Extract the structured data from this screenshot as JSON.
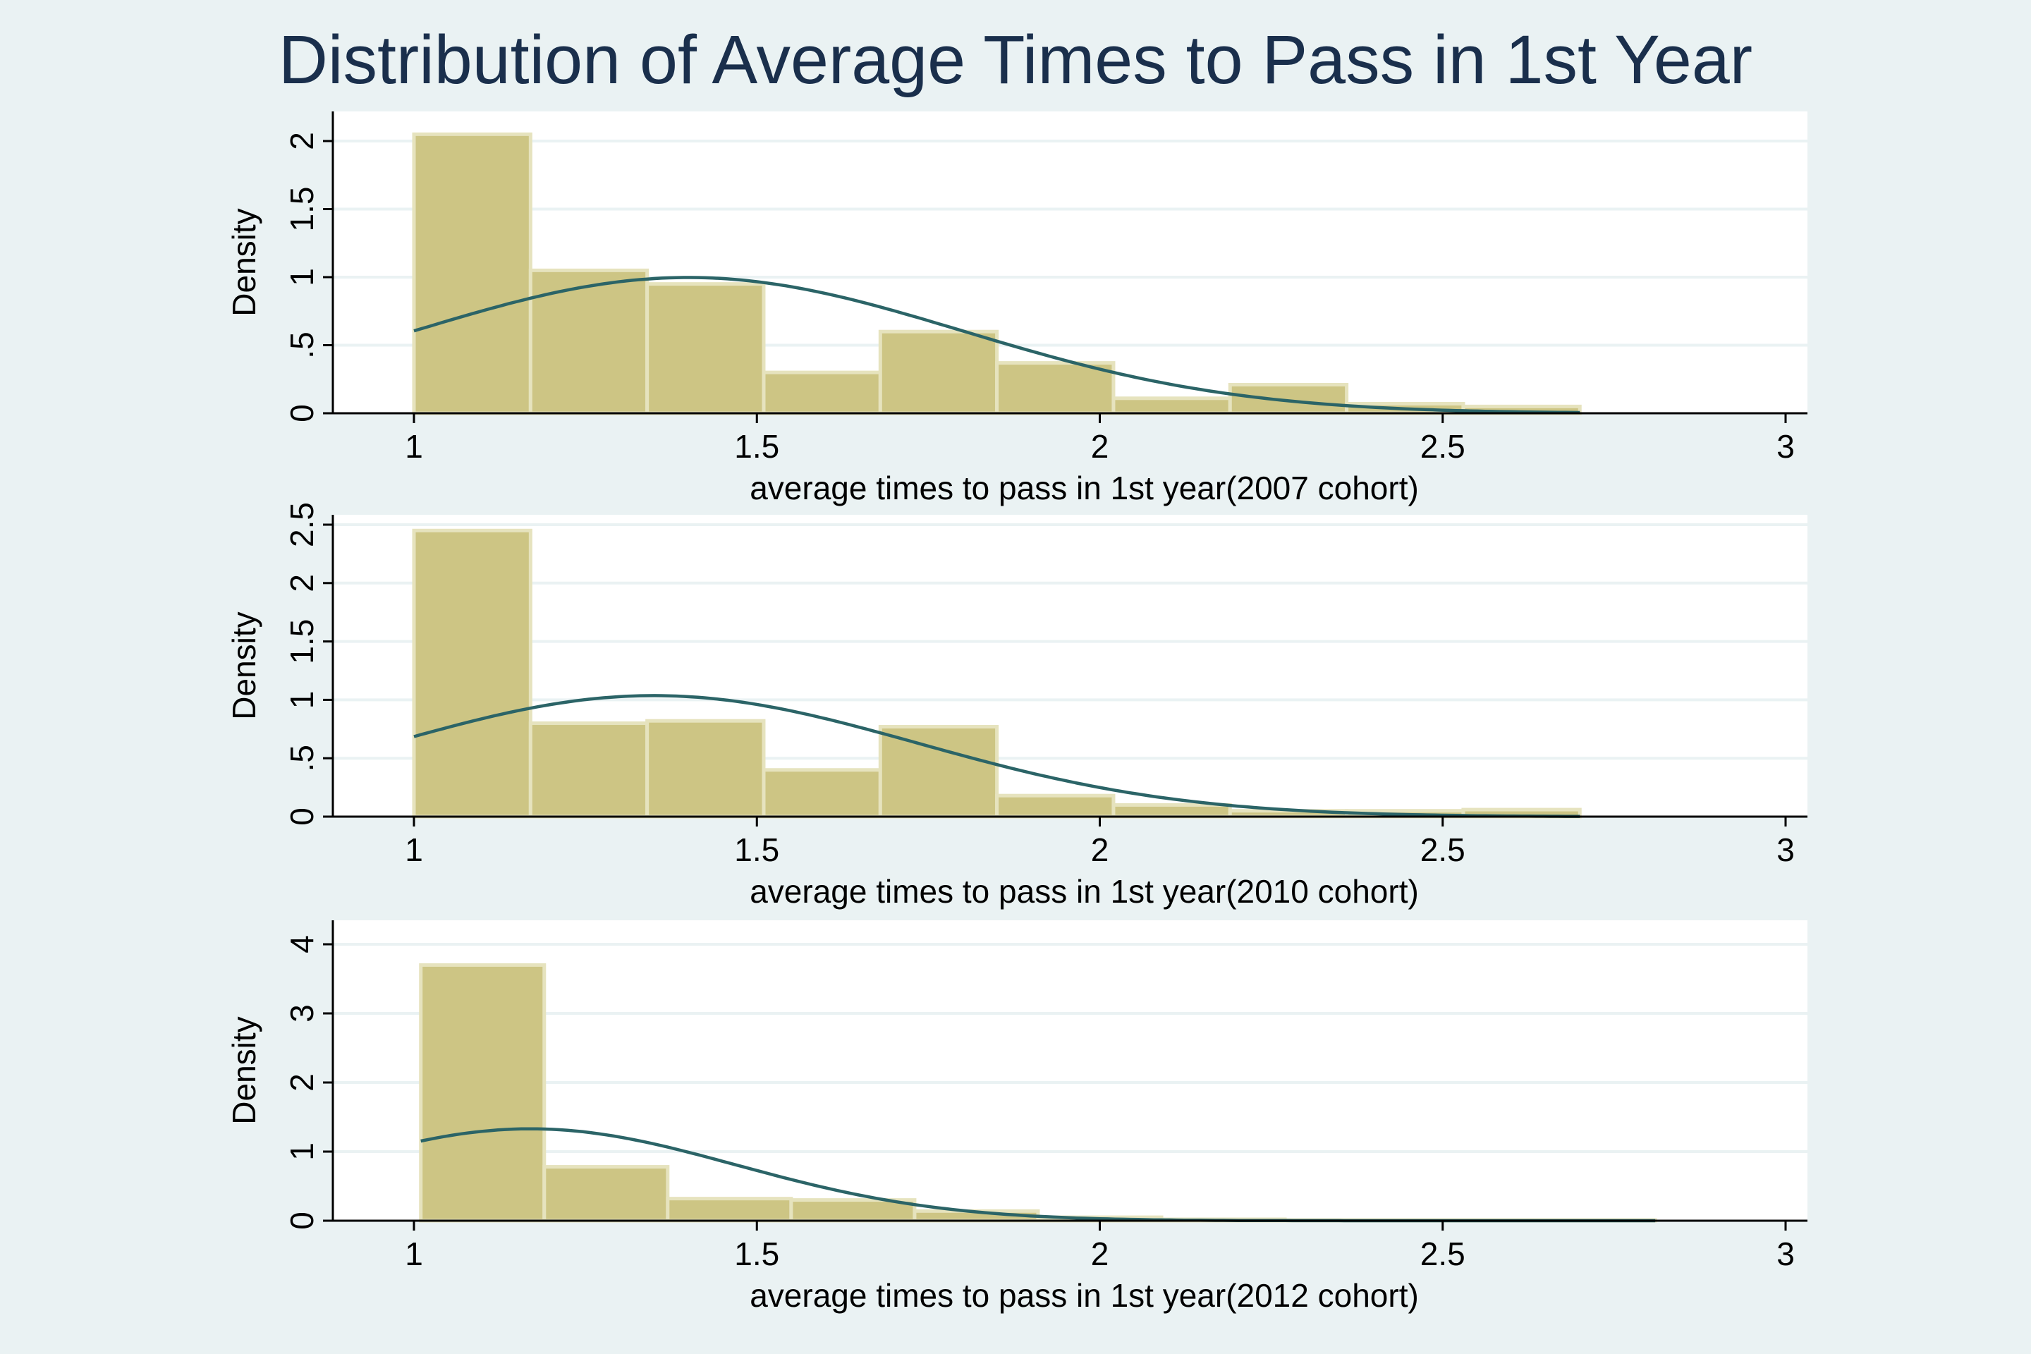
{
  "figure": {
    "title": "Distribution of Average Times to Pass in 1st Year",
    "background": "#eaf2f3",
    "plot_background": "#ffffff",
    "bar_color": "#cdc584",
    "bar_outline": "#e6e3be",
    "curve_color": "#2b6467",
    "title_color": "#1a2f4c"
  },
  "chart_data": [
    {
      "type": "bar",
      "subtype": "histogram with normal density overlay",
      "xlabel": "average times to pass in 1st year(2007 cohort)",
      "ylabel": "Density",
      "xlim": [
        1,
        3
      ],
      "xticks": [
        1,
        1.5,
        2,
        2.5,
        3
      ],
      "xtick_labels": [
        "1",
        "1.5",
        "2",
        "2.5",
        "3"
      ],
      "ylim": [
        0,
        2.0
      ],
      "yticks": [
        0,
        0.5,
        1,
        1.5,
        2
      ],
      "ytick_labels": [
        "0",
        ".5",
        "1",
        "1.5",
        "2"
      ],
      "grid": true,
      "bin_edges": [
        1.0,
        1.17,
        1.34,
        1.51,
        1.68,
        1.85,
        2.02,
        2.19,
        2.36,
        2.53,
        2.7
      ],
      "values": [
        2.05,
        1.05,
        0.95,
        0.3,
        0.6,
        0.37,
        0.11,
        0.21,
        0.07,
        0.05
      ],
      "density_curve": {
        "distribution": "normal",
        "mean": 1.4,
        "sd": 0.4,
        "x_range": [
          1,
          2.7
        ]
      }
    },
    {
      "type": "bar",
      "subtype": "histogram with normal density overlay",
      "xlabel": "average times to pass in 1st year(2010 cohort)",
      "ylabel": "Density",
      "xlim": [
        1,
        3
      ],
      "xticks": [
        1,
        1.5,
        2,
        2.5,
        3
      ],
      "xtick_labels": [
        "1",
        "1.5",
        "2",
        "2.5",
        "3"
      ],
      "ylim": [
        0,
        2.5
      ],
      "yticks": [
        0,
        0.5,
        1,
        1.5,
        2,
        2.5
      ],
      "ytick_labels": [
        "0",
        ".5",
        "1",
        "1.5",
        "2",
        "2.5"
      ],
      "grid": true,
      "bin_edges": [
        1.0,
        1.17,
        1.34,
        1.51,
        1.68,
        1.85,
        2.02,
        2.19,
        2.36,
        2.53,
        2.7
      ],
      "values": [
        2.45,
        0.8,
        0.82,
        0.4,
        0.77,
        0.18,
        0.1,
        0.05,
        0.05,
        0.06
      ],
      "density_curve": {
        "distribution": "normal",
        "mean": 1.35,
        "sd": 0.385,
        "x_range": [
          1,
          2.7
        ]
      }
    },
    {
      "type": "bar",
      "subtype": "histogram with normal density overlay",
      "xlabel": "average times to pass in 1st year(2012 cohort)",
      "ylabel": "Density",
      "xlim": [
        1,
        3
      ],
      "xticks": [
        1,
        1.5,
        2,
        2.5,
        3
      ],
      "xtick_labels": [
        "1",
        "1.5",
        "2",
        "2.5",
        "3"
      ],
      "ylim": [
        0,
        4
      ],
      "yticks": [
        0,
        1,
        2,
        3,
        4
      ],
      "ytick_labels": [
        "0",
        "1",
        "2",
        "3",
        "4"
      ],
      "grid": true,
      "bin_edges": [
        1.01,
        1.19,
        1.37,
        1.55,
        1.73,
        1.91,
        2.09,
        2.27,
        2.45,
        2.63,
        2.81
      ],
      "values": [
        3.7,
        0.78,
        0.32,
        0.3,
        0.14,
        0.05,
        0.02,
        0.01,
        0.01,
        0.01
      ],
      "density_curve": {
        "distribution": "normal",
        "mean": 1.17,
        "sd": 0.3,
        "x_range": [
          1.01,
          2.81
        ]
      }
    }
  ]
}
